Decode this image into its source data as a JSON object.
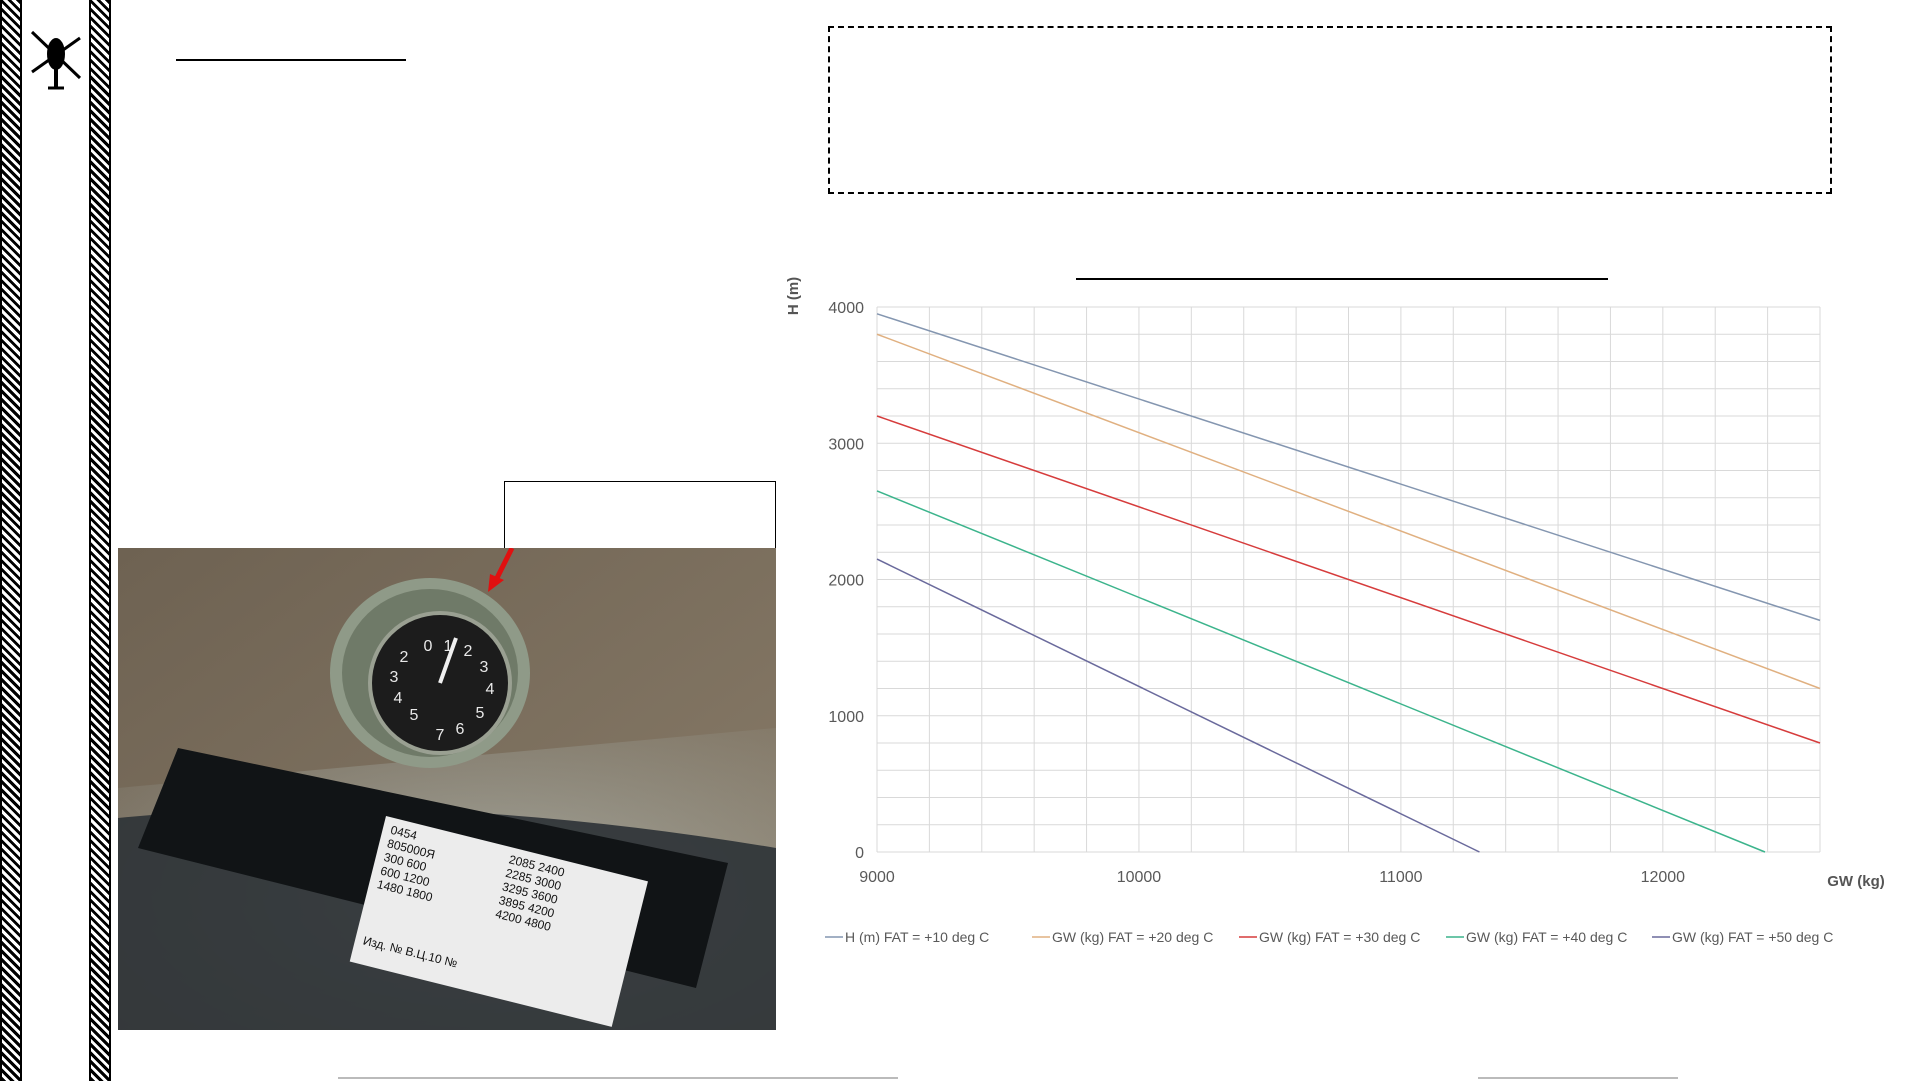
{
  "chart_data": {
    "type": "line",
    "xlabel": "GW (kg)",
    "ylabel": "H (m)",
    "xlim": [
      9000,
      12600
    ],
    "ylim": [
      0,
      4000
    ],
    "x_ticks": [
      9000,
      10000,
      11000,
      12000
    ],
    "y_ticks": [
      0,
      1000,
      2000,
      3000,
      4000
    ],
    "grid": true,
    "legend_position": "bottom",
    "series": [
      {
        "name": "H (m) FAT = +10 deg C",
        "color": "#8496b0",
        "x": [
          9000,
          12600
        ],
        "y": [
          3950,
          1700
        ]
      },
      {
        "name": "GW (kg) FAT = +20 deg C",
        "color": "#e0b080",
        "x": [
          9000,
          12600
        ],
        "y": [
          3800,
          1200
        ]
      },
      {
        "name": "GW (kg) FAT = +30 deg C",
        "color": "#d63c3c",
        "x": [
          9000,
          12600
        ],
        "y": [
          3200,
          800
        ]
      },
      {
        "name": "GW (kg) FAT = +40 deg C",
        "color": "#3cb48c",
        "x": [
          9000,
          12390
        ],
        "y": [
          2650,
          0
        ]
      },
      {
        "name": "GW (kg) FAT = +50 deg C",
        "color": "#6a6a9c",
        "x": [
          9000,
          11300
        ],
        "y": [
          2150,
          0
        ]
      }
    ]
  },
  "photo": {
    "tag_lines": [
      "0454",
      "805000Я",
      "300  600",
      "600  1200",
      "1480  1800",
      "2085  2400",
      "2285  3000",
      "3295  3600",
      "3895  4200",
      "4200  4800"
    ],
    "tag_footer": "Изд. №  В.Ц.10 №",
    "dial_numbers": [
      "0",
      "1",
      "2",
      "3",
      "4",
      "5",
      "6",
      "7",
      "5",
      "4",
      "3",
      "2"
    ]
  }
}
